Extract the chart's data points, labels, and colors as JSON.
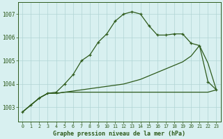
{
  "x": [
    0,
    1,
    2,
    3,
    4,
    5,
    6,
    7,
    8,
    9,
    10,
    11,
    12,
    13,
    14,
    15,
    16,
    17,
    18,
    19,
    20,
    21,
    22,
    23
  ],
  "line_main": [
    1002.8,
    1003.1,
    1003.4,
    1003.6,
    1003.65,
    1004.0,
    1004.4,
    1005.0,
    1005.25,
    1005.8,
    1006.15,
    1006.7,
    1007.0,
    1007.1,
    1007.0,
    1006.5,
    1006.1,
    1006.1,
    1006.15,
    1006.15,
    1005.75,
    1005.65,
    1004.1,
    1003.75
  ],
  "line_mid": [
    1002.8,
    1003.1,
    1003.4,
    1003.6,
    1003.6,
    1003.65,
    1003.7,
    1003.75,
    1003.8,
    1003.85,
    1003.9,
    1003.95,
    1004.0,
    1004.1,
    1004.2,
    1004.35,
    1004.5,
    1004.65,
    1004.8,
    1004.95,
    1005.2,
    1005.65,
    1004.9,
    1003.75
  ],
  "line_low": [
    1002.8,
    1003.1,
    1003.4,
    1003.6,
    1003.6,
    1003.65,
    1003.65,
    1003.65,
    1003.65,
    1003.65,
    1003.65,
    1003.65,
    1003.65,
    1003.65,
    1003.65,
    1003.65,
    1003.65,
    1003.65,
    1003.65,
    1003.65,
    1003.65,
    1003.65,
    1003.65,
    1003.75
  ],
  "line_color": "#2d5a1b",
  "bg_color": "#d8f0f0",
  "grid_color": "#b0d4d4",
  "ylabel_ticks": [
    1003,
    1004,
    1005,
    1006,
    1007
  ],
  "xlabel_ticks": [
    0,
    1,
    2,
    3,
    4,
    5,
    6,
    7,
    8,
    9,
    10,
    11,
    12,
    13,
    14,
    15,
    16,
    17,
    18,
    19,
    20,
    21,
    22,
    23
  ],
  "xlabel": "Graphe pression niveau de la mer (hPa)",
  "ylim": [
    1002.4,
    1007.5
  ],
  "xlim": [
    -0.5,
    23.5
  ]
}
